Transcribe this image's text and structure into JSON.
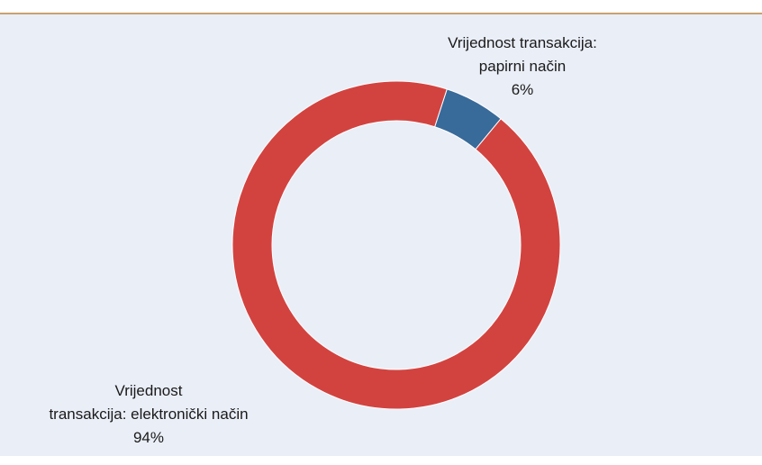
{
  "chart_data": {
    "type": "donut",
    "categories": [
      "Vrijednost transakcija: papirni način",
      "Vrijednost transakcija: elektronički način"
    ],
    "values": [
      6,
      94
    ],
    "value_labels": [
      "6%",
      "94%"
    ],
    "colors": [
      "#386a9a",
      "#d24340"
    ]
  }
}
